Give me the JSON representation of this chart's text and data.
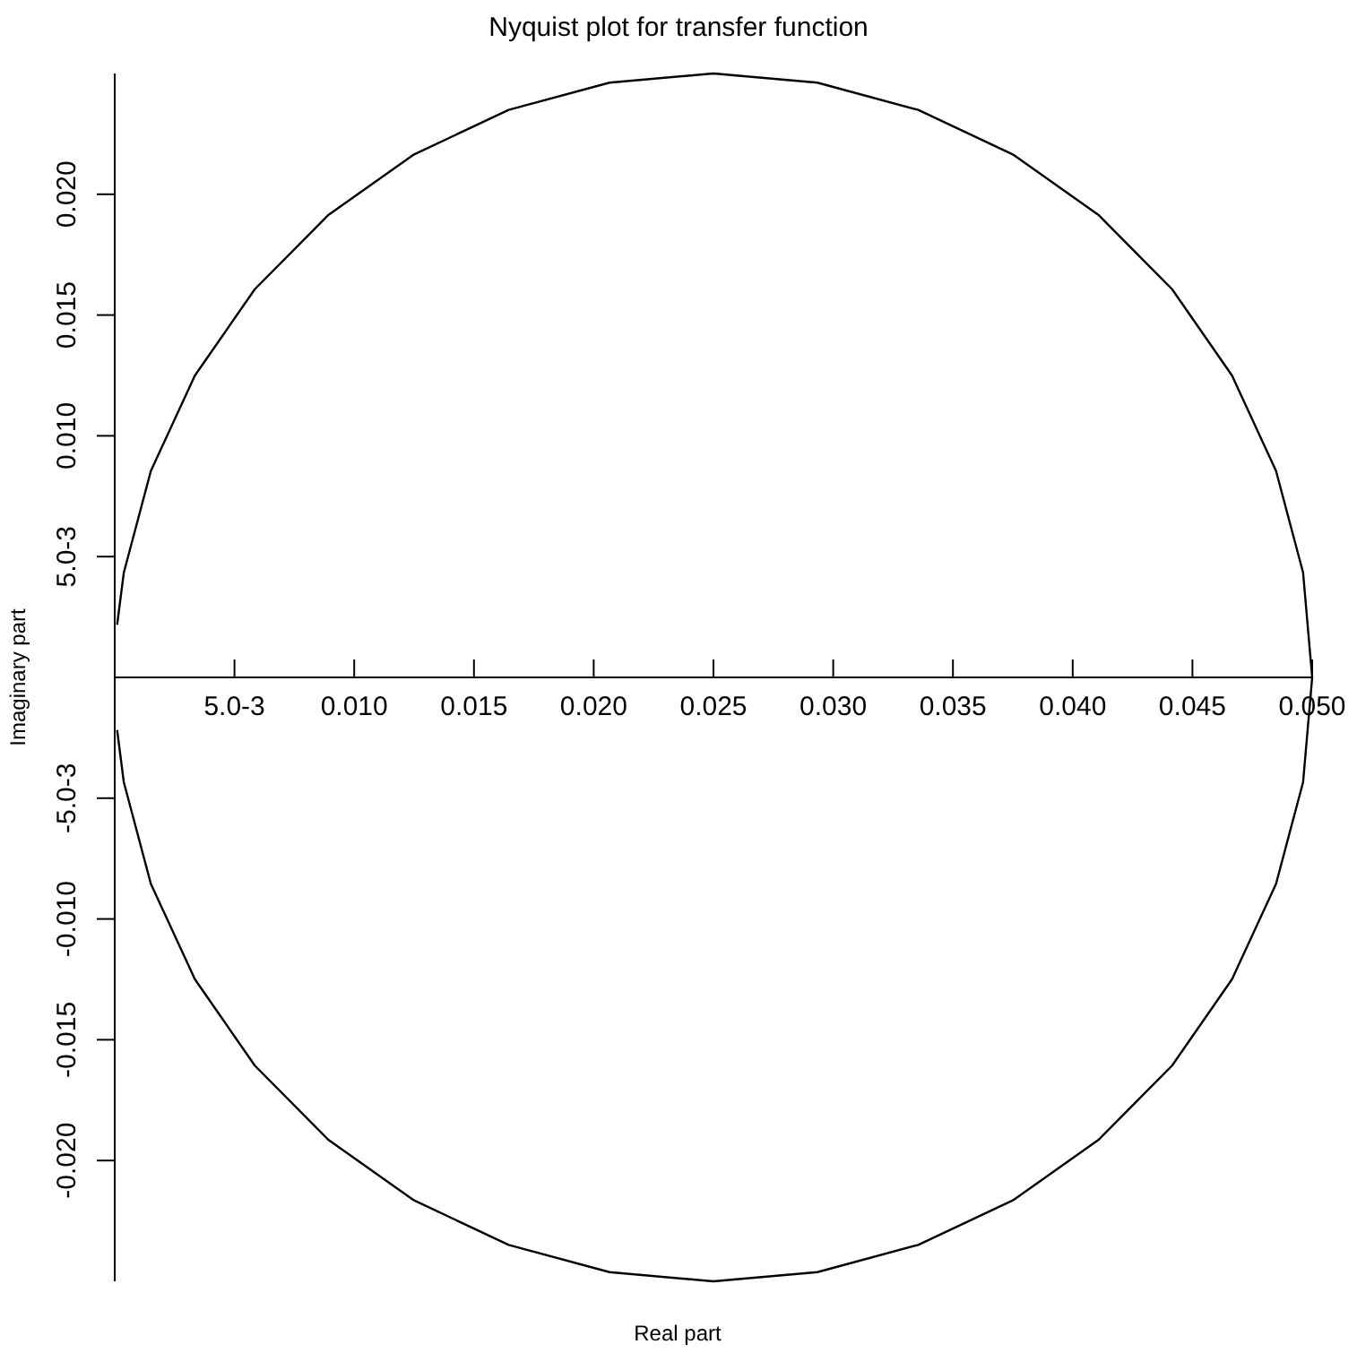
{
  "chart_data": {
    "type": "line",
    "title": "Nyquist plot for transfer function",
    "xlabel": "Real part",
    "ylabel": "Imaginary part",
    "color": "#000000",
    "x": [
      0.0001,
      0.00038,
      0.00151,
      0.00335,
      0.00585,
      0.00893,
      0.0125,
      0.01645,
      0.02066,
      0.025,
      0.02934,
      0.03355,
      0.0375,
      0.04107,
      0.04415,
      0.04665,
      0.04849,
      0.04962,
      0.05,
      0.04962,
      0.04849,
      0.04665,
      0.04415,
      0.04107,
      0.0375,
      0.03355,
      0.02934,
      0.025,
      0.02066,
      0.01645,
      0.0125,
      0.00893,
      0.00585,
      0.00335,
      0.00151,
      0.00038,
      0.0001
    ],
    "values": [
      -0.00218,
      -0.00434,
      -0.00855,
      -0.0125,
      -0.01607,
      -0.01915,
      -0.02165,
      -0.02349,
      -0.02462,
      -0.025,
      -0.02462,
      -0.02349,
      -0.02165,
      -0.01915,
      -0.01607,
      -0.0125,
      -0.00855,
      -0.00434,
      0,
      0.00434,
      0.00855,
      0.0125,
      0.01607,
      0.01915,
      0.02165,
      0.02349,
      0.02462,
      0.025,
      0.02462,
      0.02349,
      0.02165,
      0.01915,
      0.01607,
      0.0125,
      0.00855,
      0.00434,
      0.00218
    ],
    "xlim": [
      0,
      0.05
    ],
    "ylim": [
      -0.025,
      0.025
    ],
    "xticks": [
      {
        "value": 0.005,
        "label": "5.0-3"
      },
      {
        "value": 0.01,
        "label": "0.010"
      },
      0.015,
      {
        "value": 0.02,
        "label": "0.020"
      },
      0.025,
      {
        "value": 0.03,
        "label": "0.030"
      },
      0.035,
      {
        "value": 0.04,
        "label": "0.040"
      },
      0.045,
      {
        "value": 0.05,
        "label": "0.050"
      }
    ],
    "yticks": [
      {
        "value": -0.02,
        "label": "-0.020"
      },
      {
        "value": -0.015,
        "label": "-0.015"
      },
      {
        "value": -0.01,
        "label": "-0.010"
      },
      {
        "value": -0.005,
        "label": "-5.0-3"
      },
      {
        "value": 0.005,
        "label": "5.0-3"
      },
      {
        "value": 0.01,
        "label": "0.010"
      },
      {
        "value": 0.015,
        "label": "0.015"
      },
      {
        "value": 0.02,
        "label": "0.020"
      }
    ]
  }
}
